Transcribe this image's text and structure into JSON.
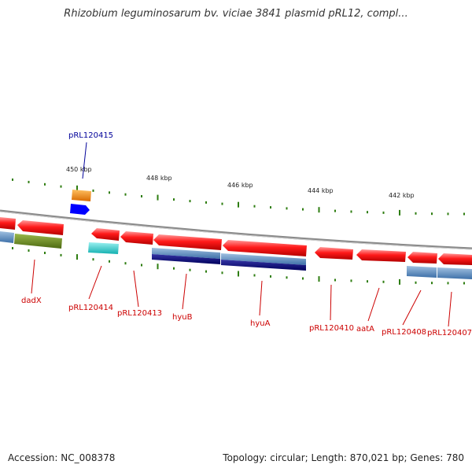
{
  "title": "Rhizobium leguminosarum bv. viciae 3841 plasmid pRL12, compl...",
  "footer": {
    "accession": "Accession: NC_008378",
    "summary": "Topology: circular; Length: 870,021 bp; Genes: 780"
  },
  "colors": {
    "gene_label": "#cc0000",
    "selected_label": "#000099",
    "backbone": "#888888",
    "tick": "#2e7d10",
    "feature_red": "#ff2020",
    "feature_blue_light": "#5a8fc0",
    "feature_blue_dark": "#0a0a7a",
    "feature_olive": "#6b8e23",
    "feature_cyan": "#22c8c8",
    "feature_orange": "#ff8c00",
    "feature_blue": "#0000ff"
  },
  "scale": {
    "unit": "kbp",
    "ticks": [
      {
        "label": "450 kbp"
      },
      {
        "label": "448 kbp"
      },
      {
        "label": "446 kbp"
      },
      {
        "label": "444 kbp"
      },
      {
        "label": "442 kbp"
      }
    ]
  },
  "genes": [
    {
      "label": "pRL120415",
      "selected": true
    },
    {
      "label": "dadX"
    },
    {
      "label": "pRL120414"
    },
    {
      "label": "pRL120413"
    },
    {
      "label": "hyuB"
    },
    {
      "label": "hyuA"
    },
    {
      "label": "pRL120410"
    },
    {
      "label": "aatA"
    },
    {
      "label": "pRL120408"
    },
    {
      "label": "pRL120407"
    }
  ]
}
